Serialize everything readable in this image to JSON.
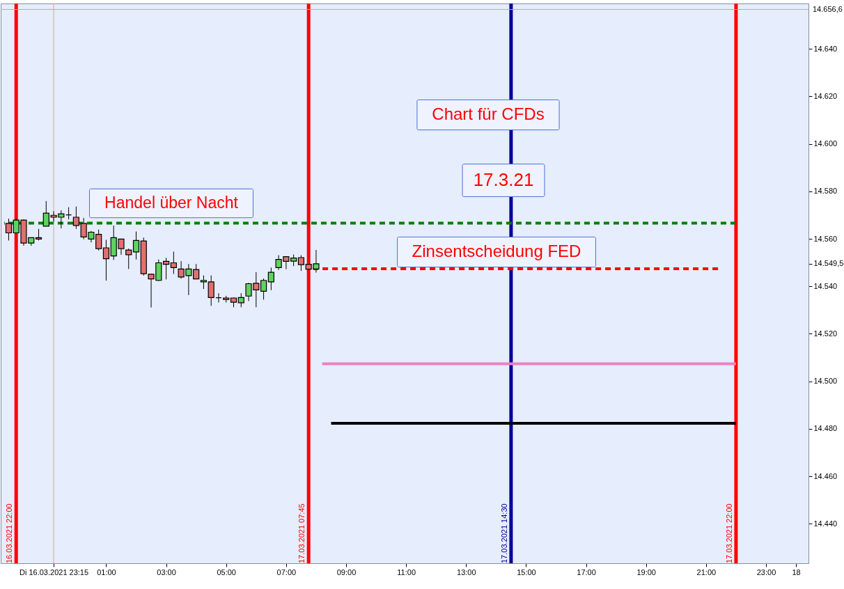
{
  "chart_data": {
    "type": "candlestick",
    "x": [
      "2021-03-16T21:45",
      "2021-03-16T22:00",
      "2021-03-16T22:15",
      "2021-03-16T22:30",
      "2021-03-16T22:45",
      "2021-03-16T23:00",
      "2021-03-16T23:15",
      "2021-03-16T23:30",
      "2021-03-16T23:45",
      "2021-03-17T00:00",
      "2021-03-17T00:15",
      "2021-03-17T00:30",
      "2021-03-17T00:45",
      "2021-03-17T01:00",
      "2021-03-17T01:15",
      "2021-03-17T01:30",
      "2021-03-17T01:45",
      "2021-03-17T02:00",
      "2021-03-17T02:15",
      "2021-03-17T02:30",
      "2021-03-17T02:45",
      "2021-03-17T03:00",
      "2021-03-17T03:15",
      "2021-03-17T03:30",
      "2021-03-17T03:45",
      "2021-03-17T04:00",
      "2021-03-17T04:15",
      "2021-03-17T04:30",
      "2021-03-17T04:45",
      "2021-03-17T05:00",
      "2021-03-17T05:15",
      "2021-03-17T05:30",
      "2021-03-17T05:45",
      "2021-03-17T06:00",
      "2021-03-17T06:15",
      "2021-03-17T06:30",
      "2021-03-17T06:45",
      "2021-03-17T07:00",
      "2021-03-17T07:15",
      "2021-03-17T07:30",
      "2021-03-17T07:45",
      "2021-03-17T08:00"
    ],
    "ohlc": [
      [
        14566.5,
        14568.5,
        14559.3,
        14562.5
      ],
      [
        14562.5,
        14568.5,
        14562.5,
        14567.9
      ],
      [
        14567.9,
        14568.2,
        14557.1,
        14558.2
      ],
      [
        14558.2,
        14560.5,
        14557.1,
        14560.5
      ],
      [
        14560.5,
        14564.2,
        14559.3,
        14559.9
      ],
      [
        14565.3,
        14575.9,
        14565.3,
        14570.8
      ],
      [
        14569.9,
        14571.6,
        14567.2,
        14569.1
      ],
      [
        14569.1,
        14572,
        14564.4,
        14570.5
      ],
      [
        14570.1,
        14573.3,
        14568.2,
        14570.1
      ],
      [
        14569.1,
        14573.6,
        14564.2,
        14565.6
      ],
      [
        14566.5,
        14568.8,
        14559.8,
        14560.8
      ],
      [
        14559.9,
        14563.3,
        14558.5,
        14562.8
      ],
      [
        14561.9,
        14563.9,
        14555.1,
        14555.9
      ],
      [
        14556.2,
        14559.6,
        14542.4,
        14551.6
      ],
      [
        14552.8,
        14565.6,
        14551.1,
        14560.5
      ],
      [
        14559.9,
        14559.9,
        14553.3,
        14555.9
      ],
      [
        14555.3,
        14555.9,
        14547.3,
        14553.3
      ],
      [
        14554.5,
        14563.1,
        14551.3,
        14559.3
      ],
      [
        14559.1,
        14560.5,
        14544.5,
        14545.3
      ],
      [
        14545.1,
        14545.3,
        14531.1,
        14543.1
      ],
      [
        14542.5,
        14551.3,
        14542.2,
        14549.9
      ],
      [
        14550.5,
        14552,
        14542.9,
        14549.3
      ],
      [
        14549.9,
        14554.6,
        14545.2,
        14547.9
      ],
      [
        14547.3,
        14550.6,
        14543.2,
        14543.9
      ],
      [
        14544.5,
        14549.4,
        14536.3,
        14547.3
      ],
      [
        14547.1,
        14549.4,
        14543.1,
        14543.1
      ],
      [
        14541.9,
        14544.6,
        14538.9,
        14542.5
      ],
      [
        14541.9,
        14544.6,
        14531.8,
        14535.3
      ],
      [
        14535.2,
        14537.1,
        14533.2,
        14535.2
      ],
      [
        14535.1,
        14536,
        14533.2,
        14534.5
      ],
      [
        14535.1,
        14535.3,
        14531.2,
        14533.3
      ],
      [
        14533.1,
        14537.1,
        14531.2,
        14535.3
      ],
      [
        14535.9,
        14541.5,
        14533.8,
        14541.1
      ],
      [
        14541.3,
        14546,
        14531.2,
        14538.5
      ],
      [
        14537.9,
        14543.3,
        14534.4,
        14542.5
      ],
      [
        14541.9,
        14547.9,
        14538.4,
        14545.9
      ],
      [
        14547.9,
        14553.1,
        14546.9,
        14551.3
      ],
      [
        14552.5,
        14552.5,
        14547.2,
        14550.5
      ],
      [
        14550.6,
        14553.4,
        14548.5,
        14551.9
      ],
      [
        14552.1,
        14553.1,
        14546.5,
        14549.1
      ],
      [
        14549.3,
        14549.3,
        14547.2,
        14547.2
      ],
      [
        14547.3,
        14555.3,
        14545.8,
        14549.5
      ]
    ],
    "colors": [
      "#e07070",
      "#5fd35f",
      "#e07070",
      "#5fd35f",
      "#e07070",
      "#5fd35f",
      "#e07070",
      "#5fd35f",
      "#000000",
      "#e07070",
      "#e07070",
      "#5fd35f",
      "#e07070",
      "#e07070",
      "#5fd35f",
      "#e07070",
      "#e07070",
      "#5fd35f",
      "#e07070",
      "#e07070",
      "#5fd35f",
      "#e07070",
      "#e07070",
      "#e07070",
      "#5fd35f",
      "#e07070",
      "#5fd35f",
      "#e07070",
      "#000000",
      "#e07070",
      "#e07070",
      "#5fd35f",
      "#5fd35f",
      "#e07070",
      "#5fd35f",
      "#5fd35f",
      "#5fd35f",
      "#e07070",
      "#5fd35f",
      "#e07070",
      "#e07070",
      "#5fd35f"
    ],
    "series": [
      {
        "type": "line",
        "x": [
          "2021-03-16T21:36",
          "2021-03-17T22:00"
        ],
        "values": [
          14566.6,
          14566.6
        ],
        "color": "#008000",
        "line_style": "dashed"
      },
      {
        "type": "line",
        "x": [
          "2021-03-17T07:54",
          "2021-03-17T21:24"
        ],
        "values": [
          14547.4,
          14547.4
        ],
        "color": "#ff0000",
        "line_style": "dashed"
      },
      {
        "type": "line",
        "x": [
          "2021-03-17T08:12",
          "2021-03-17T22:00"
        ],
        "values": [
          14507.4,
          14507.4
        ],
        "color": "#f080c0",
        "line_style": "solid"
      },
      {
        "type": "line",
        "x": [
          "2021-03-17T08:30",
          "2021-03-17T22:00"
        ],
        "values": [
          14482.3,
          14482.3
        ],
        "color": "#000000",
        "line_style": "solid"
      }
    ],
    "ref_lines": [
      {
        "axis": "x",
        "value": "2021-03-16T22:00",
        "label": "16.03.2021 22:00",
        "color": "#ff0000"
      },
      {
        "axis": "x",
        "value": "2021-03-17T07:45",
        "label": "17.03.2021 07:45",
        "color": "#ff0000"
      },
      {
        "axis": "x",
        "value": "2021-03-17T14:30",
        "label": "17.03.2021 14:30",
        "color": "#000099"
      },
      {
        "axis": "x",
        "value": "2021-03-17T22:00",
        "label": "17.03.2021 22:00",
        "color": "#ff0000"
      },
      {
        "axis": "x",
        "value": "2021-03-16T23:15",
        "label": null,
        "color": "#ff9090"
      },
      {
        "axis": "y",
        "value": 14656.6,
        "label": "14.656,6",
        "color": "#ff9090"
      }
    ],
    "xlim": [
      "2021-03-16T21:36",
      "2021-03-18T00:18"
    ],
    "xticks": [
      {
        "value": "2021-03-16T23:15",
        "label": "Di 16.03.2021 23:15"
      },
      {
        "value": "2021-03-17T01:00",
        "label": "01:00"
      },
      {
        "value": "2021-03-17T03:00",
        "label": "03:00"
      },
      {
        "value": "2021-03-17T05:00",
        "label": "05:00"
      },
      {
        "value": "2021-03-17T07:00",
        "label": "07:00"
      },
      {
        "value": "2021-03-17T09:00",
        "label": "09:00"
      },
      {
        "value": "2021-03-17T11:00",
        "label": "11:00"
      },
      {
        "value": "2021-03-17T13:00",
        "label": "13:00"
      },
      {
        "value": "2021-03-17T15:00",
        "label": "15:00"
      },
      {
        "value": "2021-03-17T17:00",
        "label": "17:00"
      },
      {
        "value": "2021-03-17T19:00",
        "label": "19:00"
      },
      {
        "value": "2021-03-17T21:00",
        "label": "21:00"
      },
      {
        "value": "2021-03-17T23:00",
        "label": "23:00"
      },
      {
        "value": "2021-03-18T00:00",
        "label": "18"
      }
    ],
    "ylim": [
      14423.4,
      14659.1
    ],
    "yticks": [
      {
        "value": 14440,
        "label": "14.440"
      },
      {
        "value": 14460,
        "label": "14.460"
      },
      {
        "value": 14480,
        "label": "14.480"
      },
      {
        "value": 14500,
        "label": "14.500"
      },
      {
        "value": 14520,
        "label": "14.520"
      },
      {
        "value": 14540,
        "label": "14.540"
      },
      {
        "value": 14549.5,
        "label": "14.549,5"
      },
      {
        "value": 14560,
        "label": "14.560"
      },
      {
        "value": 14580,
        "label": "14.580"
      },
      {
        "value": 14600,
        "label": "14.600"
      },
      {
        "value": 14620,
        "label": "14.620"
      },
      {
        "value": 14640,
        "label": "14.640"
      }
    ],
    "annotations": [
      "Handel über Nacht",
      "Chart für CFDs",
      "17.3.21",
      "Zinsentscheidung FED"
    ],
    "grid": false
  }
}
